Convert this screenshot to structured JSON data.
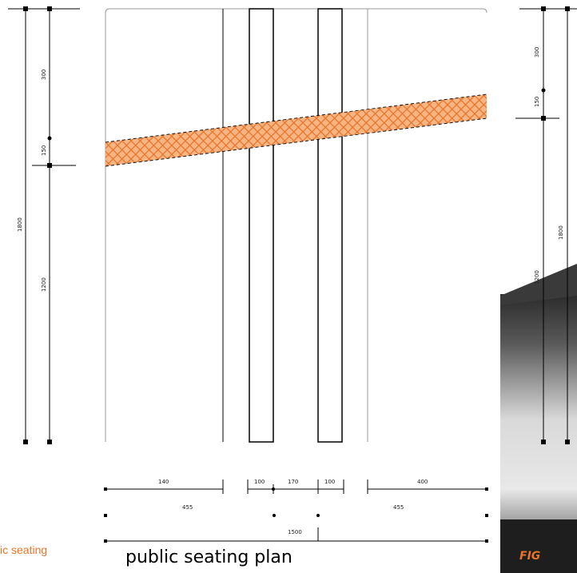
{
  "captions": {
    "left_fragment": "ic seating",
    "main": "public seating plan",
    "right_fragment": "FIG"
  },
  "left_dimensions": {
    "total": "1800",
    "top": "300",
    "middle": "150",
    "bottom": "1200"
  },
  "bottom_dimensions": {
    "row1": [
      "140",
      "100",
      "170",
      "100",
      "400"
    ],
    "row2": [
      "455",
      "455"
    ],
    "total": "1500"
  },
  "right_dimensions": {
    "top": "300",
    "middle": "150",
    "long": "1800",
    "lower": "1200"
  },
  "colors": {
    "ramp": "#f0883a",
    "line": "#000000",
    "accent_text": "#e8742a",
    "photo_dark": "#2a2a2a"
  }
}
